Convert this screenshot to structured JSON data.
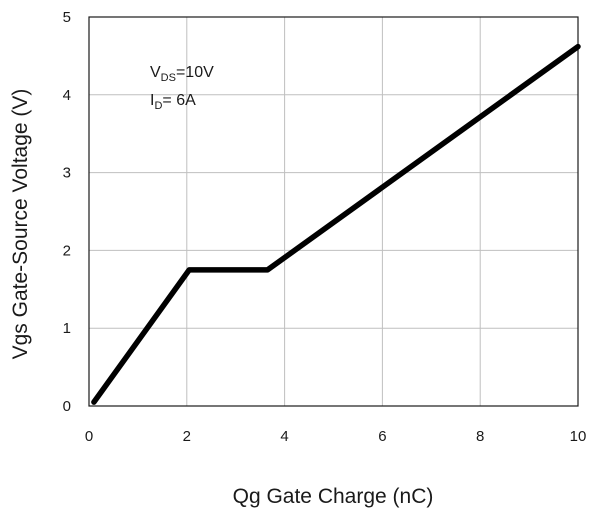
{
  "chart_data": {
    "type": "line",
    "xlabel": "Qg Gate Charge (nC)",
    "ylabel": "Vgs Gate-Source Voltage (V)",
    "xlim": [
      0,
      10
    ],
    "ylim": [
      0,
      5
    ],
    "xticks": [
      "0",
      "2",
      "4",
      "6",
      "8",
      "10"
    ],
    "yticks": [
      "0",
      "1",
      "2",
      "3",
      "4",
      "5"
    ],
    "grid": true,
    "annotations": {
      "vds_main": "V",
      "vds_sub": "DS",
      "vds_value": "=10V",
      "id_main": "I",
      "id_sub": "D",
      "id_value": "= 6A"
    },
    "series": [
      {
        "x": [
          0.1,
          2.05,
          3.65,
          10
        ],
        "y": [
          0.05,
          1.75,
          1.75,
          4.62
        ]
      }
    ],
    "colors": {
      "line": "#000000",
      "grid": "#bfbfbf",
      "axis": "#1a1a1a"
    }
  }
}
